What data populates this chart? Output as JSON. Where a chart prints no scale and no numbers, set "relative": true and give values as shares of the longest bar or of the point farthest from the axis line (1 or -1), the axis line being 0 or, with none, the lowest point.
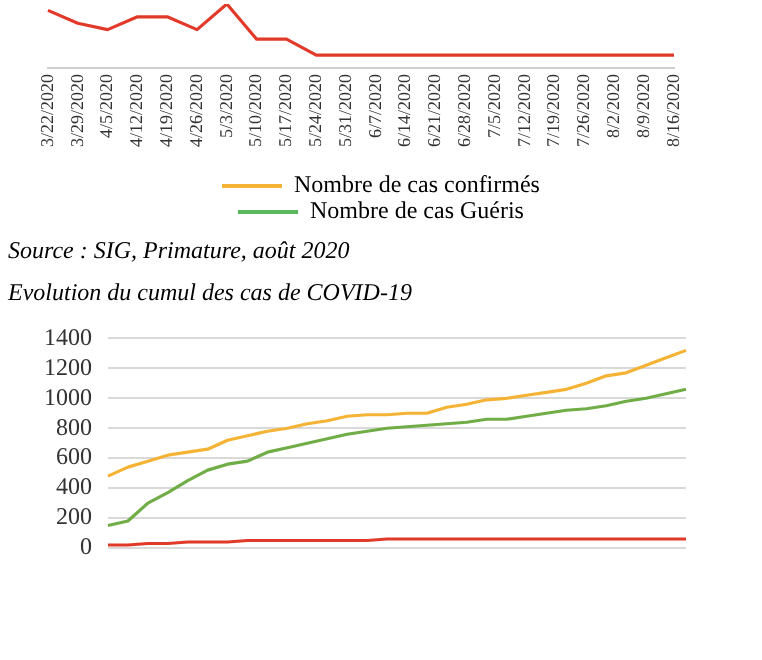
{
  "chart_data": [
    {
      "type": "line",
      "categories": [
        "3/22/2020",
        "3/29/2020",
        "4/5/2020",
        "4/12/2020",
        "4/19/2020",
        "4/26/2020",
        "5/3/2020",
        "5/10/2020",
        "5/17/2020",
        "5/24/2020",
        "5/31/2020",
        "6/7/2020",
        "6/14/2020",
        "6/21/2020",
        "6/28/2020",
        "7/5/2020",
        "7/12/2020",
        "7/19/2020",
        "7/26/2020",
        "8/2/2020",
        "8/9/2020",
        "8/16/2020"
      ],
      "series": [
        {
          "name": "Nombre de cas confirmés",
          "color": "#f5b335",
          "values": [
            null,
            null,
            null,
            null,
            null,
            null,
            null,
            null,
            null,
            null,
            null,
            null,
            null,
            null,
            null,
            null,
            null,
            null,
            null,
            null,
            null,
            null
          ]
        },
        {
          "name": "Nombre de cas Guéris",
          "color": "#5cb85c",
          "values": [
            null,
            null,
            null,
            null,
            null,
            null,
            null,
            null,
            null,
            null,
            null,
            null,
            null,
            null,
            null,
            null,
            null,
            null,
            null,
            null,
            null,
            null
          ]
        },
        {
          "color": "#e23a2a",
          "values": [
            0.9,
            0.7,
            0.6,
            0.8,
            0.8,
            0.6,
            1,
            0.45,
            0.45,
            0.2,
            0.2,
            0.2,
            0.2,
            0.2,
            0.2,
            0.2,
            0.2,
            0.2,
            0.2,
            0.2,
            0.2,
            0.2
          ]
        }
      ],
      "relative": true,
      "legend": "bottom",
      "grid": false,
      "tick_labels": "x",
      "annotations": [
        "Source : SIG, Primature, août 2020"
      ]
    },
    {
      "type": "line",
      "title": "Evolution du cumul des cas de COVID-19",
      "categories": [
        null,
        null,
        null,
        null,
        null,
        null,
        null,
        null,
        null,
        null,
        null,
        null,
        null,
        null,
        null,
        null,
        null,
        null,
        null,
        null,
        null,
        null,
        null,
        null,
        null,
        null,
        null,
        null,
        null,
        null
      ],
      "series": [
        {
          "color": "#f5b335",
          "values": [
            480,
            540,
            580,
            620,
            640,
            660,
            720,
            750,
            780,
            800,
            830,
            850,
            880,
            890,
            890,
            900,
            900,
            940,
            960,
            990,
            1000,
            1020,
            1040,
            1060,
            1100,
            1150,
            1170,
            1220,
            1270,
            1320
          ]
        },
        {
          "color": "#70ad47",
          "values": [
            150,
            180,
            300,
            370,
            450,
            520,
            560,
            580,
            640,
            670,
            700,
            730,
            760,
            780,
            800,
            810,
            820,
            830,
            840,
            860,
            860,
            880,
            900,
            920,
            930,
            950,
            980,
            1000,
            1030,
            1060
          ]
        },
        {
          "color": "#e23a2a",
          "values": [
            20,
            20,
            30,
            30,
            40,
            40,
            40,
            50,
            50,
            50,
            50,
            50,
            50,
            50,
            60,
            60,
            60,
            60,
            60,
            60,
            60,
            60,
            60,
            60,
            60,
            60,
            60,
            60,
            60,
            60
          ]
        }
      ],
      "ylim": [
        0,
        1400
      ],
      "yticks": [
        0,
        200,
        400,
        600,
        800,
        1000,
        1200,
        1400
      ],
      "grid": "y",
      "legend": false,
      "tick_labels": "y"
    }
  ]
}
